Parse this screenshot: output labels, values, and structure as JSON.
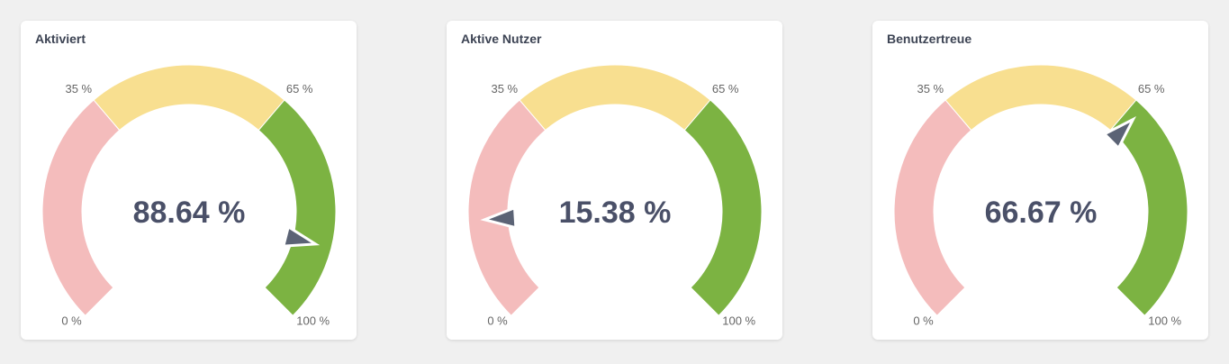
{
  "colors": {
    "low": "#f4bcbc",
    "mid": "#f8df90",
    "high": "#7cb342",
    "needle": "#5b6375",
    "value_text": "#4a5068",
    "label_text": "#666666"
  },
  "chart_data": [
    {
      "type": "gauge",
      "title": "Aktiviert",
      "value": 88.64,
      "value_label": "88.64 %",
      "range": [
        0,
        100
      ],
      "segments": [
        {
          "from": 0,
          "to": 35,
          "color": "low"
        },
        {
          "from": 35,
          "to": 65,
          "color": "mid"
        },
        {
          "from": 65,
          "to": 100,
          "color": "high"
        }
      ],
      "tick_labels": {
        "min": "0 %",
        "low": "35 %",
        "high": "65 %",
        "max": "100 %"
      }
    },
    {
      "type": "gauge",
      "title": "Aktive Nutzer",
      "value": 15.38,
      "value_label": "15.38 %",
      "range": [
        0,
        100
      ],
      "segments": [
        {
          "from": 0,
          "to": 35,
          "color": "low"
        },
        {
          "from": 35,
          "to": 65,
          "color": "mid"
        },
        {
          "from": 65,
          "to": 100,
          "color": "high"
        }
      ],
      "tick_labels": {
        "min": "0 %",
        "low": "35 %",
        "high": "65 %",
        "max": "100 %"
      }
    },
    {
      "type": "gauge",
      "title": "Benutzertreue",
      "value": 66.67,
      "value_label": "66.67 %",
      "range": [
        0,
        100
      ],
      "segments": [
        {
          "from": 0,
          "to": 35,
          "color": "low"
        },
        {
          "from": 35,
          "to": 65,
          "color": "mid"
        },
        {
          "from": 65,
          "to": 100,
          "color": "high"
        }
      ],
      "tick_labels": {
        "min": "0 %",
        "low": "35 %",
        "high": "65 %",
        "max": "100 %"
      }
    }
  ]
}
